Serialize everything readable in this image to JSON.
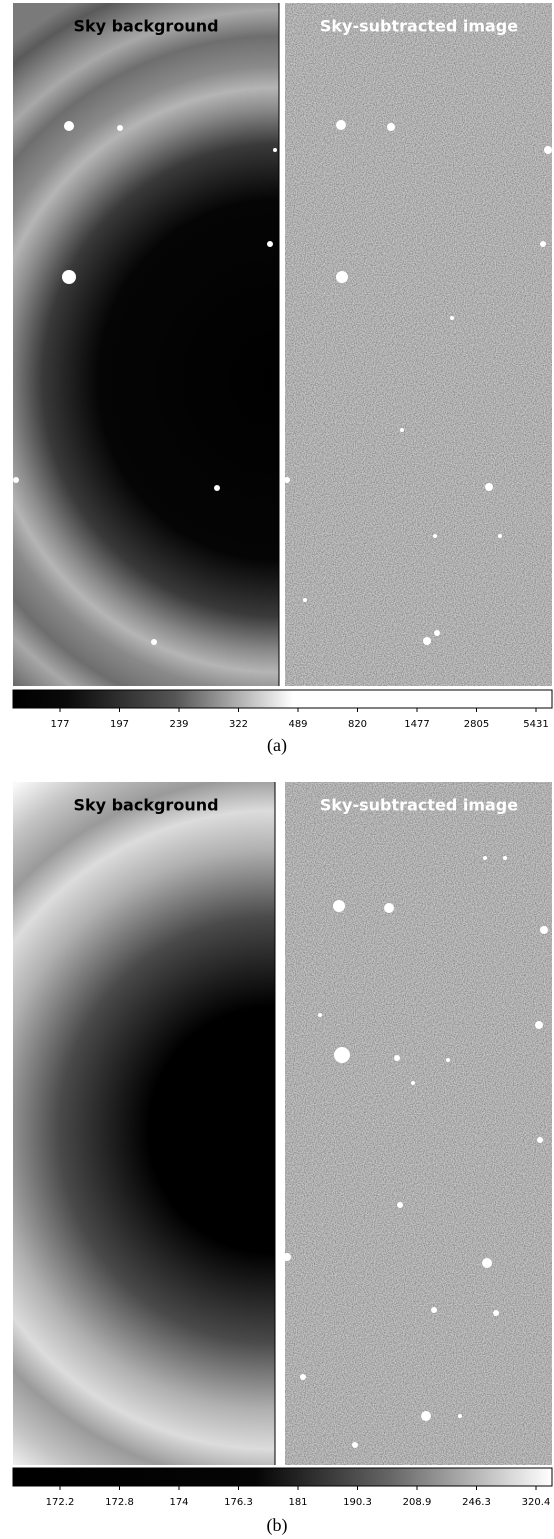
{
  "panels": [
    {
      "left_title": "Sky background",
      "right_title": "Sky-subtracted image",
      "colorbar_ticks": [
        177,
        197,
        239,
        322,
        489,
        820,
        1477,
        2805,
        5431
      ],
      "caption": "(a)"
    },
    {
      "left_title": "Sky background",
      "right_title": "Sky-subtracted image",
      "colorbar_ticks": [
        172.2,
        172.8,
        174,
        176.3,
        181,
        190.3,
        208.9,
        246.3,
        320.4
      ],
      "caption": "(b)"
    }
  ]
}
